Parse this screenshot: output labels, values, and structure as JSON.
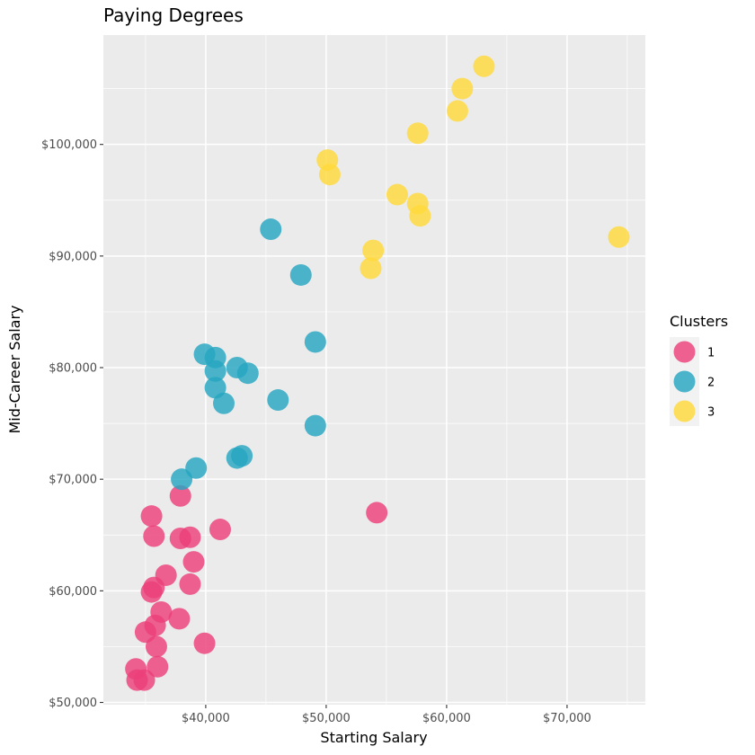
{
  "chart_data": {
    "type": "scatter",
    "title": "Paying Degrees",
    "xlabel": "Starting Salary",
    "ylabel": "Mid-Career Salary",
    "xlim": [
      31500,
      76500
    ],
    "ylim": [
      49800,
      109800
    ],
    "x_ticks": [
      {
        "value": 40000,
        "label": "$40,000"
      },
      {
        "value": 50000,
        "label": "$50,000"
      },
      {
        "value": 60000,
        "label": "$60,000"
      },
      {
        "value": 70000,
        "label": "$70,000"
      }
    ],
    "y_ticks": [
      {
        "value": 50000,
        "label": "$50,000"
      },
      {
        "value": 60000,
        "label": "$60,000"
      },
      {
        "value": 70000,
        "label": "$70,000"
      },
      {
        "value": 80000,
        "label": "$80,000"
      },
      {
        "value": 90000,
        "label": "$90,000"
      },
      {
        "value": 100000,
        "label": "$100,000"
      }
    ],
    "grid": true,
    "legend": {
      "title": "Clusters",
      "position": "right"
    },
    "series": [
      {
        "name": "1",
        "color": "#EC407A",
        "points": [
          {
            "x": 34200,
            "y": 53000
          },
          {
            "x": 34300,
            "y": 52000
          },
          {
            "x": 34900,
            "y": 52000
          },
          {
            "x": 35000,
            "y": 56300
          },
          {
            "x": 35500,
            "y": 59900
          },
          {
            "x": 35700,
            "y": 60300
          },
          {
            "x": 35800,
            "y": 56900
          },
          {
            "x": 35900,
            "y": 55000
          },
          {
            "x": 36000,
            "y": 53200
          },
          {
            "x": 36300,
            "y": 58100
          },
          {
            "x": 36700,
            "y": 61400
          },
          {
            "x": 35500,
            "y": 66700
          },
          {
            "x": 35700,
            "y": 64900
          },
          {
            "x": 37800,
            "y": 57500
          },
          {
            "x": 37900,
            "y": 64700
          },
          {
            "x": 37900,
            "y": 68500
          },
          {
            "x": 38700,
            "y": 64800
          },
          {
            "x": 38700,
            "y": 60600
          },
          {
            "x": 39000,
            "y": 62600
          },
          {
            "x": 39900,
            "y": 55300
          },
          {
            "x": 41200,
            "y": 65500
          },
          {
            "x": 54200,
            "y": 67000
          }
        ]
      },
      {
        "name": "2",
        "color": "#26A6C1",
        "points": [
          {
            "x": 38000,
            "y": 70000
          },
          {
            "x": 39200,
            "y": 71000
          },
          {
            "x": 39900,
            "y": 81200
          },
          {
            "x": 40800,
            "y": 80900
          },
          {
            "x": 40800,
            "y": 79700
          },
          {
            "x": 40800,
            "y": 78200
          },
          {
            "x": 41500,
            "y": 76800
          },
          {
            "x": 42600,
            "y": 80000
          },
          {
            "x": 42600,
            "y": 71900
          },
          {
            "x": 43000,
            "y": 72100
          },
          {
            "x": 43500,
            "y": 79500
          },
          {
            "x": 45400,
            "y": 92400
          },
          {
            "x": 46000,
            "y": 77100
          },
          {
            "x": 47900,
            "y": 88300
          },
          {
            "x": 49100,
            "y": 82300
          },
          {
            "x": 49100,
            "y": 74800
          }
        ]
      },
      {
        "name": "3",
        "color": "#FFD93B",
        "points": [
          {
            "x": 50100,
            "y": 98600
          },
          {
            "x": 50300,
            "y": 97300
          },
          {
            "x": 53700,
            "y": 88900
          },
          {
            "x": 53900,
            "y": 90500
          },
          {
            "x": 55900,
            "y": 95500
          },
          {
            "x": 57600,
            "y": 101000
          },
          {
            "x": 57600,
            "y": 94700
          },
          {
            "x": 57800,
            "y": 93600
          },
          {
            "x": 60900,
            "y": 103000
          },
          {
            "x": 61300,
            "y": 105000
          },
          {
            "x": 63100,
            "y": 107000
          },
          {
            "x": 74300,
            "y": 91700
          }
        ]
      }
    ]
  }
}
